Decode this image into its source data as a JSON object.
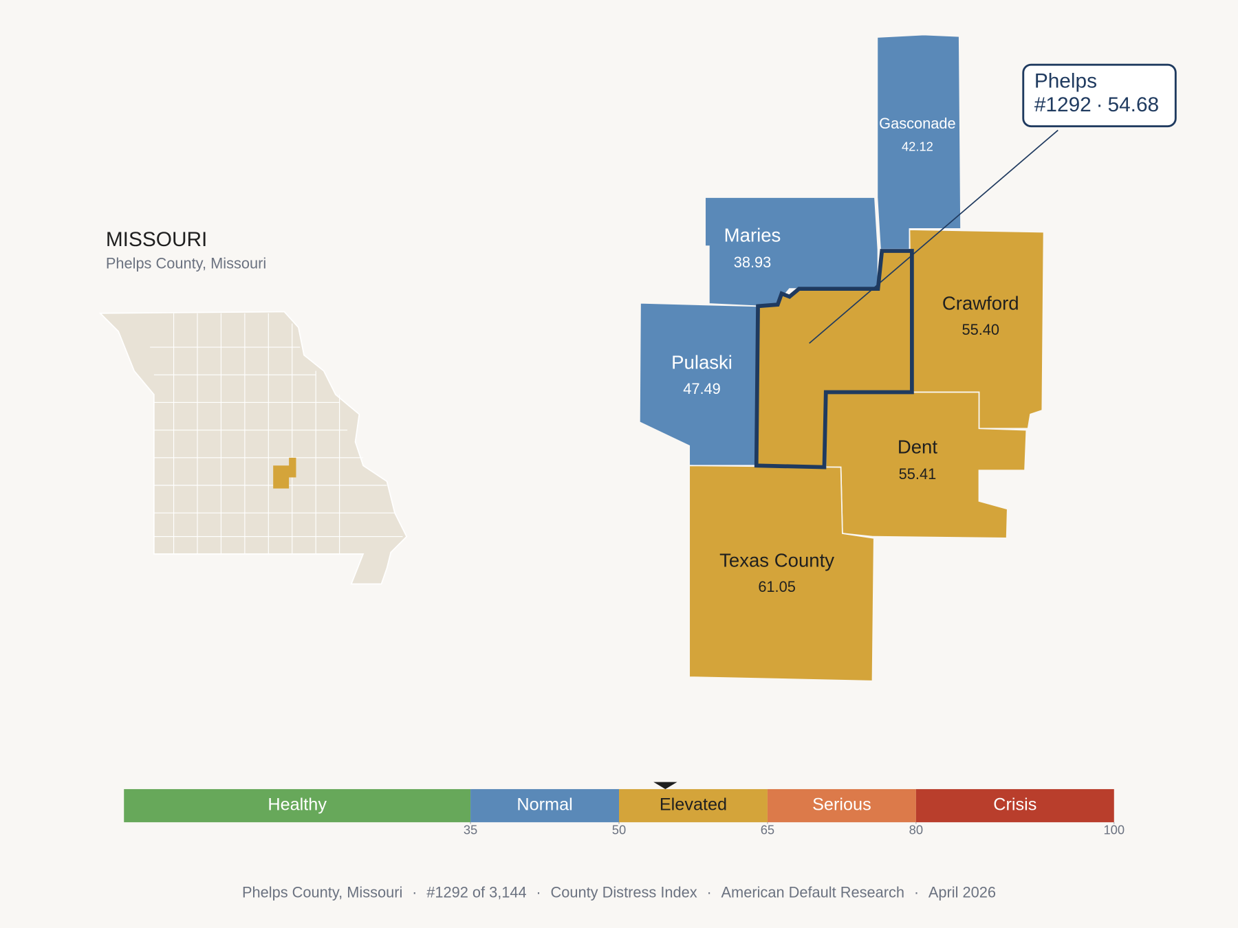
{
  "header": {
    "title": "MISSOURI",
    "subtitle": "Phelps County, Missouri"
  },
  "focus": {
    "name": "Phelps",
    "rank": "#1292",
    "separator": "·",
    "score": 54.68
  },
  "counties": [
    {
      "name": "Gasconade",
      "value": 42.12
    },
    {
      "name": "Maries",
      "value": 38.93
    },
    {
      "name": "Crawford",
      "value": 55.4,
      "value_label": "55.40"
    },
    {
      "name": "Pulaski",
      "value": 47.49
    },
    {
      "name": "Dent",
      "value": 55.41
    },
    {
      "name": "Texas County",
      "value": 61.05
    }
  ],
  "scale": {
    "xlim": [
      0,
      100
    ],
    "xticks": [
      35,
      50,
      65,
      80,
      100
    ],
    "bands": [
      {
        "name": "Healthy",
        "color": "#67a85a",
        "label_color": "#ffffff"
      },
      {
        "name": "Normal",
        "color": "#5a89b8",
        "label_color": "#ffffff"
      },
      {
        "name": "Elevated",
        "color": "#d4a43a",
        "label_color": "#1f1f1f"
      },
      {
        "name": "Serious",
        "color": "#dc7a4a",
        "label_color": "#ffffff"
      },
      {
        "name": "Crisis",
        "color": "#b93e2c",
        "label_color": "#ffffff"
      }
    ]
  },
  "footer": {
    "separator": "·",
    "items": [
      "Phelps County, Missouri",
      "#1292 of 3,144",
      "County Distress Index",
      "American Default Research",
      "April 2026"
    ]
  }
}
